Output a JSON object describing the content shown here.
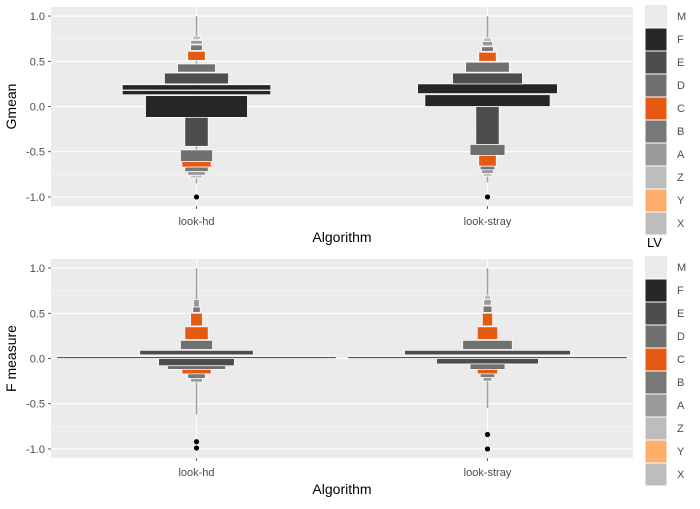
{
  "chart_data": [
    {
      "type": "boxplot-letter-value",
      "ylabel": "Gmean",
      "xlabel": "Algorithm",
      "ylim": [
        -1.1,
        1.1
      ],
      "yticks": [
        -1.0,
        -0.5,
        0.0,
        0.5,
        1.0
      ],
      "ytick_labels": [
        "-1.0",
        "-0.5",
        "0.0",
        "0.5",
        "1.0"
      ],
      "categories": [
        "look-hd",
        "look-stray"
      ],
      "grid": true,
      "series": [
        {
          "category": "look-hd",
          "boxes": [
            {
              "lv": "M",
              "lo": 0.18,
              "hi": 0.18
            },
            {
              "lv": "F",
              "lo": 0.13,
              "hi": 0.24,
              "w": 0.51
            },
            {
              "lv": "F",
              "lo": -0.12,
              "hi": 0.12,
              "w": 0.35
            },
            {
              "lv": "E",
              "lo": 0.25,
              "hi": 0.37,
              "w": 0.22
            },
            {
              "lv": "D",
              "lo": 0.38,
              "hi": 0.47,
              "w": 0.13
            },
            {
              "lv": "C",
              "lo": 0.51,
              "hi": 0.61,
              "w": 0.06
            },
            {
              "lv": "B",
              "lo": 0.62,
              "hi": 0.68,
              "w": 0.04
            },
            {
              "lv": "A",
              "lo": 0.69,
              "hi": 0.73,
              "w": 0.04
            },
            {
              "lv": "Z",
              "lo": 0.74,
              "hi": 0.78,
              "w": 0.025
            },
            {
              "lv": "E",
              "lo": -0.44,
              "hi": -0.12,
              "w": 0.08
            },
            {
              "lv": "D",
              "lo": -0.61,
              "hi": -0.48,
              "w": 0.11
            },
            {
              "lv": "C",
              "lo": -0.67,
              "hi": -0.61,
              "w": 0.1
            },
            {
              "lv": "B",
              "lo": -0.72,
              "hi": -0.67,
              "w": 0.08
            },
            {
              "lv": "A",
              "lo": -0.76,
              "hi": -0.72,
              "w": 0.06
            },
            {
              "lv": "Z",
              "lo": -0.79,
              "hi": -0.76,
              "w": 0.04
            }
          ],
          "whisker": [
            -0.85,
            1.0
          ],
          "outliers": [
            -1.0
          ]
        },
        {
          "category": "look-stray",
          "boxes": [
            {
              "lv": "M",
              "lo": 0.14,
              "hi": 0.14
            },
            {
              "lv": "F",
              "lo": 0.13,
              "hi": 0.25,
              "w": 0.48
            },
            {
              "lv": "F",
              "lo": 0.0,
              "hi": 0.13,
              "w": 0.43
            },
            {
              "lv": "E",
              "lo": 0.25,
              "hi": 0.37,
              "w": 0.24
            },
            {
              "lv": "D",
              "lo": 0.38,
              "hi": 0.49,
              "w": 0.15
            },
            {
              "lv": "C",
              "lo": 0.5,
              "hi": 0.6,
              "w": 0.06
            },
            {
              "lv": "B",
              "lo": 0.61,
              "hi": 0.66,
              "w": 0.04
            },
            {
              "lv": "A",
              "lo": 0.67,
              "hi": 0.72,
              "w": 0.035
            },
            {
              "lv": "Z",
              "lo": 0.72,
              "hi": 0.76,
              "w": 0.025
            },
            {
              "lv": "E",
              "lo": -0.42,
              "hi": 0.0,
              "w": 0.08
            },
            {
              "lv": "D",
              "lo": -0.54,
              "hi": -0.42,
              "w": 0.12
            },
            {
              "lv": "C",
              "lo": -0.66,
              "hi": -0.54,
              "w": 0.06
            },
            {
              "lv": "B",
              "lo": -0.7,
              "hi": -0.66,
              "w": 0.05
            },
            {
              "lv": "A",
              "lo": -0.74,
              "hi": -0.7,
              "w": 0.04
            },
            {
              "lv": "Z",
              "lo": -0.77,
              "hi": -0.74,
              "w": 0.03
            }
          ],
          "whisker": [
            -0.84,
            1.0
          ],
          "outliers": [
            -1.0
          ]
        }
      ]
    },
    {
      "type": "boxplot-letter-value",
      "ylabel": "F measure",
      "xlabel": "Algorithm",
      "ylim": [
        -1.1,
        1.1
      ],
      "yticks": [
        -1.0,
        -0.5,
        0.0,
        0.5,
        1.0
      ],
      "ytick_labels": [
        "-1.0",
        "-0.5",
        "0.0",
        "0.5",
        "1.0"
      ],
      "categories": [
        "look-hd",
        "look-stray"
      ],
      "grid": true,
      "series": [
        {
          "category": "look-hd",
          "boxes": [
            {
              "lv": "M",
              "lo": 0.02,
              "hi": 0.02
            },
            {
              "lv": "F",
              "lo": 0.0,
              "hi": 0.03,
              "w": 0.96
            },
            {
              "lv": "E",
              "lo": 0.04,
              "hi": 0.09,
              "w": 0.39
            },
            {
              "lv": "D",
              "lo": 0.1,
              "hi": 0.2,
              "w": 0.11
            },
            {
              "lv": "C",
              "lo": 0.21,
              "hi": 0.35,
              "w": 0.08
            },
            {
              "lv": "C",
              "lo": 0.36,
              "hi": 0.5,
              "w": 0.04
            },
            {
              "lv": "B",
              "lo": 0.51,
              "hi": 0.57,
              "w": 0.025
            },
            {
              "lv": "A",
              "lo": 0.57,
              "hi": 0.65,
              "w": 0.02
            },
            {
              "lv": "E",
              "lo": -0.08,
              "hi": 0.0,
              "w": 0.26
            },
            {
              "lv": "D",
              "lo": -0.12,
              "hi": -0.08,
              "w": 0.2
            },
            {
              "lv": "C",
              "lo": -0.17,
              "hi": -0.12,
              "w": 0.1
            },
            {
              "lv": "B",
              "lo": -0.22,
              "hi": -0.17,
              "w": 0.06
            },
            {
              "lv": "A",
              "lo": -0.26,
              "hi": -0.22,
              "w": 0.04
            }
          ],
          "whisker": [
            -0.62,
            1.0
          ],
          "outliers": [
            -0.92,
            -0.99
          ]
        },
        {
          "category": "look-stray",
          "boxes": [
            {
              "lv": "M",
              "lo": 0.02,
              "hi": 0.02
            },
            {
              "lv": "F",
              "lo": 0.0,
              "hi": 0.03,
              "w": 0.96
            },
            {
              "lv": "E",
              "lo": 0.04,
              "hi": 0.09,
              "w": 0.57
            },
            {
              "lv": "D",
              "lo": 0.1,
              "hi": 0.2,
              "w": 0.17
            },
            {
              "lv": "C",
              "lo": 0.21,
              "hi": 0.35,
              "w": 0.07
            },
            {
              "lv": "C",
              "lo": 0.36,
              "hi": 0.5,
              "w": 0.035
            },
            {
              "lv": "B",
              "lo": 0.51,
              "hi": 0.58,
              "w": 0.03
            },
            {
              "lv": "A",
              "lo": 0.59,
              "hi": 0.65,
              "w": 0.025
            },
            {
              "lv": "Z",
              "lo": 0.65,
              "hi": 0.7,
              "w": 0.02
            },
            {
              "lv": "E",
              "lo": -0.06,
              "hi": 0.0,
              "w": 0.35
            },
            {
              "lv": "D",
              "lo": -0.12,
              "hi": -0.06,
              "w": 0.12
            },
            {
              "lv": "C",
              "lo": -0.17,
              "hi": -0.12,
              "w": 0.07
            },
            {
              "lv": "B",
              "lo": -0.21,
              "hi": -0.17,
              "w": 0.05
            },
            {
              "lv": "A",
              "lo": -0.25,
              "hi": -0.21,
              "w": 0.03
            }
          ],
          "whisker": [
            -0.55,
            1.0
          ],
          "outliers": [
            -0.84,
            -1.0
          ]
        }
      ]
    }
  ],
  "legend": {
    "title": "LV",
    "entries": [
      "M",
      "F",
      "E",
      "D",
      "C",
      "B",
      "A",
      "Z",
      "Y",
      "X"
    ],
    "colors": {
      "M": "#ffffff",
      "F": "#262626",
      "E": "#4d4d4d",
      "D": "#707070",
      "C": "#e45a12",
      "B": "#787878",
      "A": "#999999",
      "Z": "#bdbdbd",
      "Y": "#fdae6b",
      "X": "#bdbdbd"
    }
  },
  "theme": {
    "panel_bg": "#ebebeb",
    "grid_major": "#ffffff",
    "text_color": "#4d4d4d",
    "title_color": "#000000"
  }
}
